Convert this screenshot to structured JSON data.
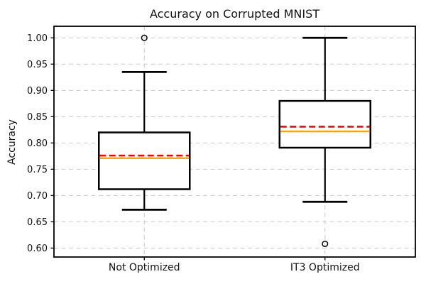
{
  "chart_data": {
    "type": "box",
    "title": "Accuracy on Corrupted MNIST",
    "xlabel": "",
    "ylabel": "Accuracy",
    "categories": [
      "Not Optimized",
      "IT3 Optimized"
    ],
    "ylim": [
      0.583,
      1.022
    ],
    "yticks": [
      0.6,
      0.65,
      0.7,
      0.75,
      0.8,
      0.85,
      0.9,
      0.95,
      1.0
    ],
    "ytick_labels": [
      "0.60",
      "0.65",
      "0.70",
      "0.75",
      "0.80",
      "0.85",
      "0.90",
      "0.95",
      "1.00"
    ],
    "grid": {
      "visible": true,
      "style": "dashed",
      "axes": "both"
    },
    "legend": "none",
    "series": [
      {
        "name": "Not Optimized",
        "whisker_low": 0.673,
        "q1": 0.712,
        "median": 0.771,
        "mean": 0.776,
        "q3": 0.82,
        "whisker_high": 0.935,
        "outliers": [
          1.0
        ]
      },
      {
        "name": "IT3 Optimized",
        "whisker_low": 0.688,
        "q1": 0.791,
        "median": 0.822,
        "mean": 0.831,
        "q3": 0.88,
        "whisker_high": 1.0,
        "outliers": [
          0.608
        ]
      }
    ],
    "colors": {
      "box_stroke": "#000000",
      "median_line": "#ffa500",
      "mean_line": "#ff0000",
      "grid_line": "#c9c9c9",
      "spine": "#000000",
      "background": "#ffffff",
      "text": "#111111"
    },
    "line_styles": {
      "mean": "dashed",
      "median": "solid"
    }
  }
}
